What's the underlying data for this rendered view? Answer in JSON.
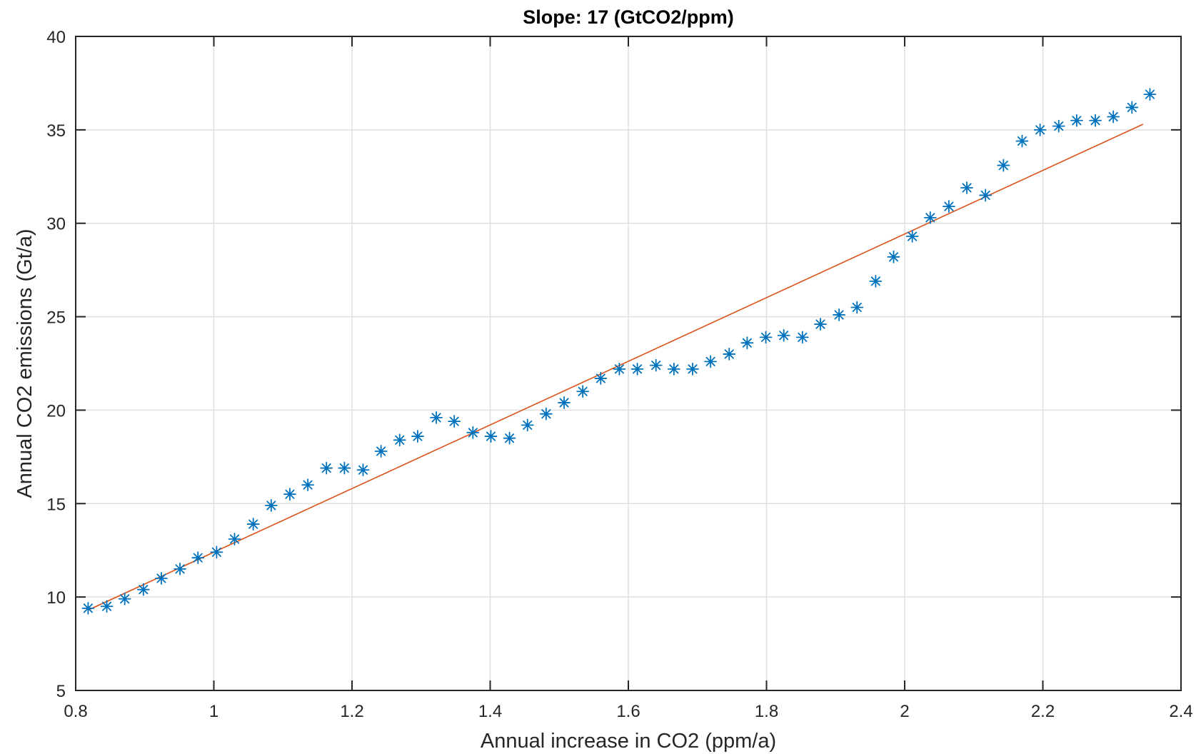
{
  "chart_data": {
    "type": "scatter",
    "title": "Slope: 17 (GtCO2/ppm)",
    "xlabel": "Annual increase in CO2 (ppm/a)",
    "ylabel": "Annual CO2 emissions (Gt/a)",
    "xlim": [
      0.8,
      2.4
    ],
    "ylim": [
      5,
      40
    ],
    "xticks": [
      0.8,
      1.0,
      1.2,
      1.4,
      1.6,
      1.8,
      2.0,
      2.2,
      2.4
    ],
    "xtick_labels": [
      "0.8",
      "1",
      "1.2",
      "1.4",
      "1.6",
      "1.8",
      "2",
      "2.2",
      "2.4"
    ],
    "yticks": [
      5,
      10,
      15,
      20,
      25,
      30,
      35,
      40
    ],
    "ytick_labels": [
      "5",
      "10",
      "15",
      "20",
      "25",
      "30",
      "35",
      "40"
    ],
    "grid": true,
    "colors": {
      "points": "#0072BD",
      "fit": "#D95319",
      "grid": "#DFDFDF",
      "axes": "#262626"
    },
    "series": [
      {
        "type": "scatter",
        "marker": "asterisk",
        "x": [
          0.818,
          0.845,
          0.871,
          0.898,
          0.924,
          0.951,
          0.977,
          1.004,
          1.03,
          1.057,
          1.083,
          1.11,
          1.136,
          1.163,
          1.189,
          1.216,
          1.242,
          1.269,
          1.295,
          1.322,
          1.348,
          1.375,
          1.401,
          1.428,
          1.454,
          1.481,
          1.507,
          1.534,
          1.56,
          1.587,
          1.613,
          1.64,
          1.666,
          1.693,
          1.719,
          1.746,
          1.772,
          1.799,
          1.825,
          1.852,
          1.878,
          1.905,
          1.931,
          1.958,
          1.984,
          2.011,
          2.037,
          2.064,
          2.09,
          2.117,
          2.143,
          2.17,
          2.196,
          2.223,
          2.249,
          2.276,
          2.302,
          2.329,
          2.355
        ],
        "y": [
          9.4,
          9.5,
          9.9,
          10.4,
          11.0,
          11.5,
          12.1,
          12.4,
          13.1,
          13.9,
          14.9,
          15.5,
          16.0,
          16.9,
          16.9,
          16.8,
          17.8,
          18.4,
          18.6,
          19.6,
          19.4,
          18.8,
          18.6,
          18.5,
          19.2,
          19.8,
          20.4,
          21.0,
          21.7,
          22.2,
          22.2,
          22.4,
          22.2,
          22.2,
          22.6,
          23.0,
          23.6,
          23.9,
          24.0,
          23.9,
          24.6,
          25.1,
          25.5,
          26.9,
          28.2,
          29.3,
          30.3,
          30.9,
          31.9,
          31.5,
          33.1,
          34.4,
          35.0,
          35.2,
          35.5,
          35.5,
          35.7,
          36.2,
          36.9
        ]
      },
      {
        "type": "line",
        "x": [
          0.818,
          2.345
        ],
        "y": [
          9.3,
          35.3
        ]
      }
    ]
  }
}
